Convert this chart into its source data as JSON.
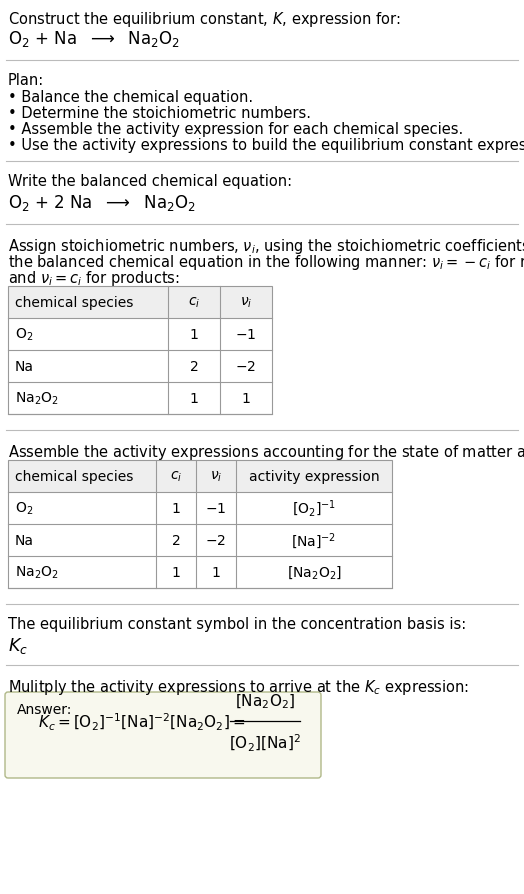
{
  "title_line1": "Construct the equilibrium constant, $K$, expression for:",
  "title_line2": "$\\mathrm{O_2}$ + Na  $\\longrightarrow$  $\\mathrm{Na_2O_2}$",
  "plan_header": "Plan:",
  "plan_items": [
    "• Balance the chemical equation.",
    "• Determine the stoichiometric numbers.",
    "• Assemble the activity expression for each chemical species.",
    "• Use the activity expressions to build the equilibrium constant expression."
  ],
  "balanced_header": "Write the balanced chemical equation:",
  "balanced_eq": "$\\mathrm{O_2}$ + 2 Na  $\\longrightarrow$  $\\mathrm{Na_2O_2}$",
  "stoich_header1": "Assign stoichiometric numbers, $\\nu_i$, using the stoichiometric coefficients, $c_i$, from",
  "stoich_header2": "the balanced chemical equation in the following manner: $\\nu_i = -c_i$ for reactants",
  "stoich_header3": "and $\\nu_i = c_i$ for products:",
  "table1_cols": [
    "chemical species",
    "$c_i$",
    "$\\nu_i$"
  ],
  "table1_rows": [
    [
      "$\\mathrm{O_2}$",
      "1",
      "$-1$"
    ],
    [
      "Na",
      "2",
      "$-2$"
    ],
    [
      "$\\mathrm{Na_2O_2}$",
      "1",
      "1"
    ]
  ],
  "activity_header": "Assemble the activity expressions accounting for the state of matter and $\\nu_i$:",
  "table2_cols": [
    "chemical species",
    "$c_i$",
    "$\\nu_i$",
    "activity expression"
  ],
  "table2_rows": [
    [
      "$\\mathrm{O_2}$",
      "1",
      "$-1$",
      "$[\\mathrm{O_2}]^{-1}$"
    ],
    [
      "Na",
      "2",
      "$-2$",
      "$[\\mathrm{Na}]^{-2}$"
    ],
    [
      "$\\mathrm{Na_2O_2}$",
      "1",
      "1",
      "$[\\mathrm{Na_2O_2}]$"
    ]
  ],
  "kc_header": "The equilibrium constant symbol in the concentration basis is:",
  "kc_symbol": "$K_c$",
  "multiply_header": "Mulitply the activity expressions to arrive at the $K_c$ expression:",
  "answer_label": "Answer:",
  "answer_lhs": "$K_c = [\\mathrm{O_2}]^{-1} [\\mathrm{Na}]^{-2} [\\mathrm{Na_2O_2}] = $",
  "answer_num": "$[\\mathrm{Na_2O_2}]$",
  "answer_den": "$[\\mathrm{O_2}] [\\mathrm{Na}]^2$",
  "bg_color": "#ffffff",
  "divider_color": "#bbbbbb",
  "answer_bg": "#f8f8ee",
  "answer_border": "#b0b888"
}
